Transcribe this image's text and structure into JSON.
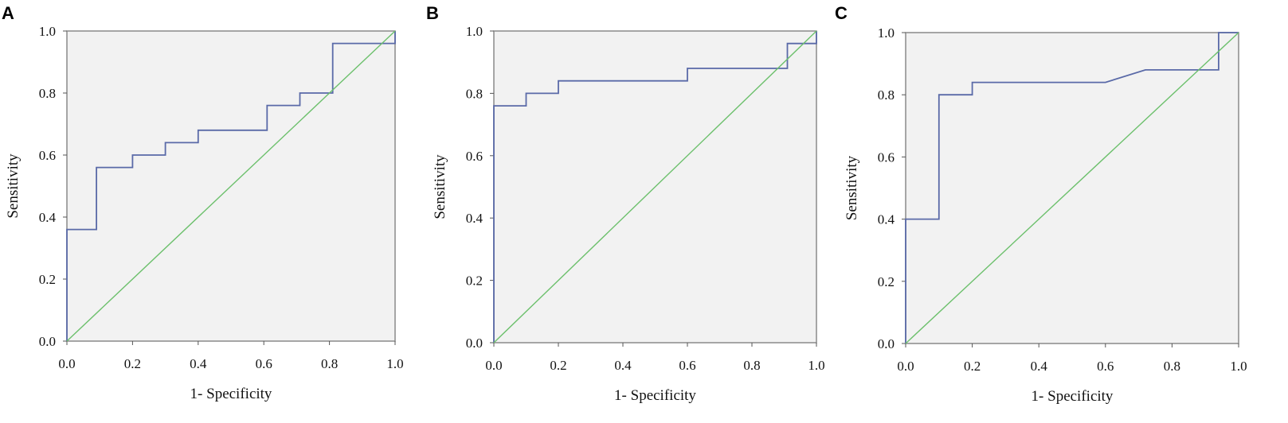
{
  "chart_data": [
    {
      "type": "line",
      "panel_label": "A",
      "xlabel": "1- Specificity",
      "ylabel": "Sensitivity",
      "xlim": [
        0,
        1
      ],
      "ylim": [
        0,
        1
      ],
      "x_ticks": [
        "0.0",
        "0.2",
        "0.4",
        "0.6",
        "0.8",
        "1.0"
      ],
      "y_ticks": [
        "0.0",
        "0.2",
        "0.4",
        "0.6",
        "0.8",
        "1.0"
      ],
      "grid": false,
      "series": [
        {
          "role": "roc",
          "color": "#5a6aa8",
          "x": [
            0.0,
            0.0,
            0.09,
            0.09,
            0.2,
            0.2,
            0.3,
            0.3,
            0.4,
            0.4,
            0.61,
            0.61,
            0.71,
            0.71,
            0.81,
            0.81,
            1.0,
            1.0
          ],
          "y": [
            0.0,
            0.36,
            0.36,
            0.56,
            0.56,
            0.6,
            0.6,
            0.64,
            0.64,
            0.68,
            0.68,
            0.76,
            0.76,
            0.8,
            0.8,
            0.96,
            0.96,
            1.0
          ]
        },
        {
          "role": "reference",
          "color": "#6cc06c",
          "x": [
            0,
            1
          ],
          "y": [
            0,
            1
          ]
        }
      ]
    },
    {
      "type": "line",
      "panel_label": "B",
      "xlabel": "1- Specificity",
      "ylabel": "Sensitivity",
      "xlim": [
        0,
        1
      ],
      "ylim": [
        0,
        1
      ],
      "x_ticks": [
        "0.0",
        "0.2",
        "0.4",
        "0.6",
        "0.8",
        "1.0"
      ],
      "y_ticks": [
        "0.0",
        "0.2",
        "0.4",
        "0.6",
        "0.8",
        "1.0"
      ],
      "grid": false,
      "series": [
        {
          "role": "roc",
          "color": "#5a6aa8",
          "x": [
            0.0,
            0.0,
            0.1,
            0.1,
            0.2,
            0.2,
            0.6,
            0.6,
            0.91,
            0.91,
            1.0,
            1.0
          ],
          "y": [
            0.0,
            0.76,
            0.76,
            0.8,
            0.8,
            0.84,
            0.84,
            0.88,
            0.88,
            0.96,
            0.96,
            1.0
          ]
        },
        {
          "role": "reference",
          "color": "#6cc06c",
          "x": [
            0,
            1
          ],
          "y": [
            0,
            1
          ]
        }
      ]
    },
    {
      "type": "line",
      "panel_label": "C",
      "xlabel": "1- Specificity",
      "ylabel": "Sensitivity",
      "xlim": [
        0,
        1
      ],
      "ylim": [
        0,
        1
      ],
      "x_ticks": [
        "0.0",
        "0.2",
        "0.4",
        "0.6",
        "0.8",
        "1.0"
      ],
      "y_ticks": [
        "0.0",
        "0.2",
        "0.4",
        "0.6",
        "0.8",
        "1.0"
      ],
      "grid": false,
      "series": [
        {
          "role": "roc",
          "color": "#5a6aa8",
          "x": [
            0.0,
            0.0,
            0.1,
            0.1,
            0.2,
            0.2,
            0.6,
            0.72,
            0.94,
            0.94,
            1.0
          ],
          "y": [
            0.0,
            0.4,
            0.4,
            0.8,
            0.8,
            0.84,
            0.84,
            0.88,
            0.88,
            1.0,
            1.0
          ]
        },
        {
          "role": "reference",
          "color": "#6cc06c",
          "x": [
            0,
            1
          ],
          "y": [
            0,
            1
          ]
        }
      ]
    }
  ]
}
